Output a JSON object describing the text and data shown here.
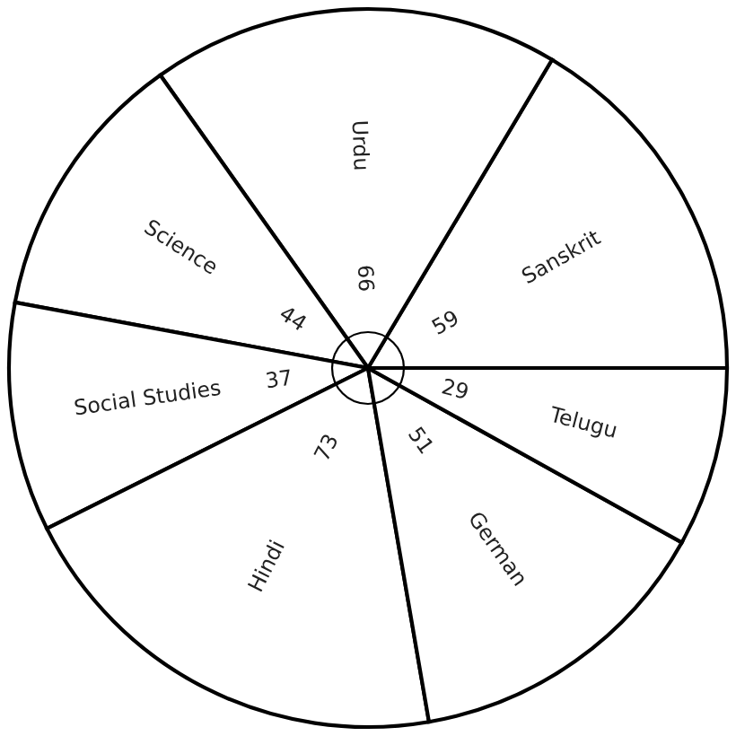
{
  "chart_data": {
    "type": "pie",
    "categories": [
      "Sanskrit",
      "Urdu",
      "Science",
      "Social Studies",
      "Hindi",
      "German",
      "Telugu"
    ],
    "values": [
      59,
      66,
      44,
      37,
      73,
      51,
      29
    ],
    "colors": [
      "#ffffff",
      "#ffffff",
      "#ffffff",
      "#ffffff",
      "#ffffff",
      "#ffffff",
      "#ffffff"
    ],
    "data_labels": true
  }
}
